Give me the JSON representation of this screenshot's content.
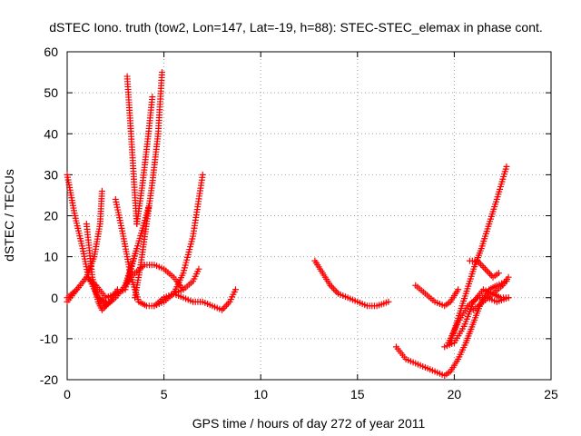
{
  "chart_data": {
    "type": "scatter",
    "title": "dSTEC Iono. truth (tow2, Lon=147, Lat=-19, h=88): STEC-STEC_elemax in phase cont.",
    "xlabel": "GPS time / hours of day 272 of year 2011",
    "ylabel": "dSTEC  / TECUs",
    "xlim": [
      0,
      25
    ],
    "ylim": [
      -20,
      60
    ],
    "x_ticks": [
      "0",
      "5",
      "10",
      "15",
      "20",
      "25"
    ],
    "y_ticks": [
      "-20",
      "-10",
      "0",
      "10",
      "20",
      "30",
      "40",
      "50",
      "60"
    ],
    "grid": true,
    "marker": "+",
    "color": "#ff0000",
    "series": [
      {
        "x": [
          0.0,
          0.4,
          0.8,
          1.1,
          1.6,
          2.0
        ],
        "y": [
          30,
          20,
          12,
          5,
          0,
          -1
        ]
      },
      {
        "x": [
          0.0,
          0.5,
          1.0,
          1.4,
          1.7,
          1.8
        ],
        "y": [
          -1,
          2,
          5,
          10,
          18,
          26
        ]
      },
      {
        "x": [
          0.0,
          0.5,
          1.0,
          1.5,
          2.0,
          3.0,
          3.6
        ],
        "y": [
          0,
          2,
          5,
          3,
          0,
          2,
          12
        ]
      },
      {
        "x": [
          1.0,
          1.3,
          1.6,
          1.8,
          2.2,
          2.6
        ],
        "y": [
          18,
          5,
          -1,
          -3,
          -1,
          2
        ]
      },
      {
        "x": [
          1.6,
          2.0,
          2.5,
          3.0,
          3.6,
          4.2
        ],
        "y": [
          0,
          -2,
          0,
          3,
          12,
          22
        ]
      },
      {
        "x": [
          2.5,
          2.9,
          3.3,
          3.7,
          4.1,
          4.5,
          5.0
        ],
        "y": [
          24,
          15,
          5,
          -1,
          -2,
          -2,
          0
        ]
      },
      {
        "x": [
          3.1,
          3.3,
          3.5,
          3.6
        ],
        "y": [
          54,
          40,
          25,
          18
        ]
      },
      {
        "x": [
          3.6,
          3.9,
          4.2,
          4.4
        ],
        "y": [
          18,
          28,
          40,
          49
        ]
      },
      {
        "x": [
          3.5,
          3.8,
          4.1,
          4.4,
          4.7,
          4.9
        ],
        "y": [
          0,
          8,
          18,
          28,
          40,
          55
        ]
      },
      {
        "x": [
          3.0,
          3.5,
          4.0,
          4.5,
          5.0,
          5.5,
          6.0
        ],
        "y": [
          3,
          6,
          8,
          8,
          7,
          5,
          2
        ]
      },
      {
        "x": [
          4.5,
          5.0,
          5.5,
          6.0,
          6.5,
          7.0
        ],
        "y": [
          -2,
          -1,
          1,
          6,
          15,
          30
        ]
      },
      {
        "x": [
          5.0,
          5.5,
          6.0,
          6.5,
          6.8
        ],
        "y": [
          0,
          1,
          2,
          4,
          7
        ]
      },
      {
        "x": [
          5.5,
          6.0,
          6.5,
          7.0,
          7.5,
          8.0,
          8.4,
          8.7
        ],
        "y": [
          1,
          0,
          -1,
          -1,
          -2,
          -3,
          -1,
          2
        ]
      },
      {
        "x": [
          12.8,
          13.2,
          13.6,
          14.0,
          14.5,
          15.0,
          15.5,
          16.0,
          16.6
        ],
        "y": [
          9,
          6,
          3,
          1,
          0,
          -1,
          -2,
          -2,
          -1
        ]
      },
      {
        "x": [
          18.0,
          18.5,
          19.0,
          19.5,
          19.8,
          20.2
        ],
        "y": [
          3,
          1,
          -1,
          -2,
          -1,
          2
        ]
      },
      {
        "x": [
          17.0,
          17.5,
          18.0,
          18.5,
          19.0,
          19.5,
          19.8,
          20.2,
          20.6,
          21.0,
          21.4,
          21.8,
          22.2,
          22.7
        ],
        "y": [
          -12,
          -15,
          -16,
          -17,
          -18,
          -19,
          -18,
          -15,
          -11,
          -6,
          -1,
          2,
          3,
          4
        ]
      },
      {
        "x": [
          19.5,
          20.0,
          20.5,
          21.0,
          21.5,
          22.0,
          22.4,
          22.8
        ],
        "y": [
          -12,
          -11,
          -7,
          -1,
          2,
          1,
          0,
          0
        ]
      },
      {
        "x": [
          19.7,
          20.2,
          20.7,
          21.2,
          21.7,
          22.2,
          22.8
        ],
        "y": [
          -11,
          -6,
          -2,
          0,
          0,
          -1,
          0
        ]
      },
      {
        "x": [
          19.8,
          20.2,
          20.6,
          21.0,
          21.4,
          21.8,
          22.2,
          22.7
        ],
        "y": [
          -11,
          -5,
          1,
          7,
          12,
          18,
          24,
          32
        ]
      },
      {
        "x": [
          20.8,
          21.2,
          21.6,
          22.0,
          22.3
        ],
        "y": [
          9,
          9,
          7,
          5,
          6
        ]
      },
      {
        "x": [
          21.0,
          21.5,
          22.0,
          22.5,
          22.8
        ],
        "y": [
          -3,
          -1,
          1,
          3,
          5
        ]
      }
    ]
  }
}
